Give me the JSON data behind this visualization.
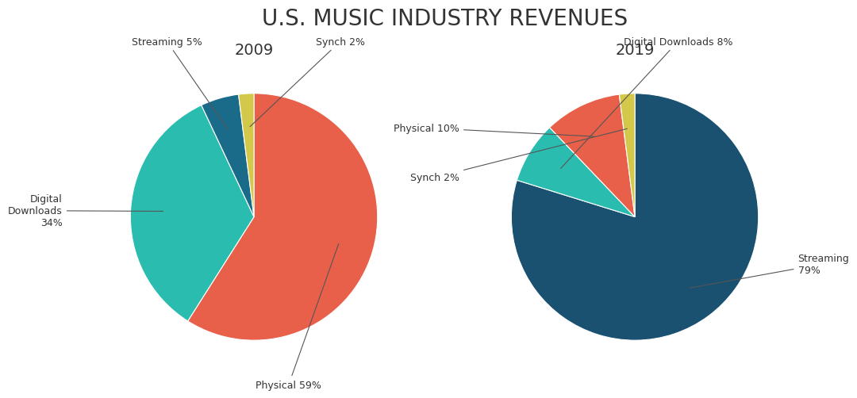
{
  "title": "U.S. MUSIC INDUSTRY REVENUES",
  "title_fontsize": 20,
  "background_color": "#ffffff",
  "text_color": "#333333",
  "charts": [
    {
      "year": "2009",
      "slices": [
        {
          "label": "Physical",
          "pct": 59,
          "color": "#E8604A"
        },
        {
          "label": "Digital Downloads",
          "pct": 34,
          "color": "#2BBCB0"
        },
        {
          "label": "Streaming",
          "pct": 5,
          "color": "#1A6B8A"
        },
        {
          "label": "Synch",
          "pct": 2,
          "color": "#D4C84A"
        }
      ]
    },
    {
      "year": "2019",
      "slices": [
        {
          "label": "Streaming",
          "pct": 79,
          "color": "#1A5070"
        },
        {
          "label": "Digital Downloads",
          "pct": 8,
          "color": "#2BBCB0"
        },
        {
          "label": "Physical",
          "pct": 10,
          "color": "#E8604A"
        },
        {
          "label": "Synch",
          "pct": 2,
          "color": "#D4C84A"
        }
      ]
    }
  ]
}
